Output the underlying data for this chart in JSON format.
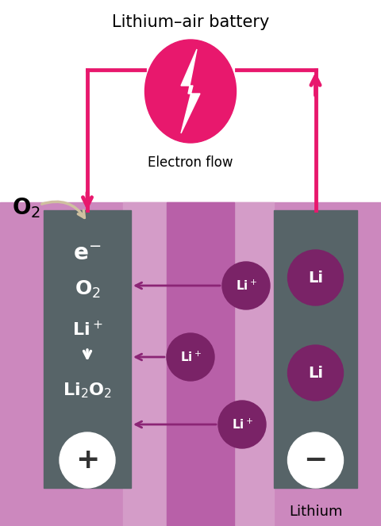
{
  "title": "Lithium–air battery",
  "pink": "#e8186d",
  "dark_purple": "#7a2367",
  "electrode_color": "#576468",
  "purple_bg": "#cc88be",
  "purple_mid": "#c070b0",
  "purple_dark_stripe": "#b860a8",
  "white": "#ffffff",
  "arrow_color": "#8b2575",
  "o2_arrow_color": "#d8cdb0",
  "fig_w": 4.8,
  "fig_h": 6.63,
  "dpi": 100
}
